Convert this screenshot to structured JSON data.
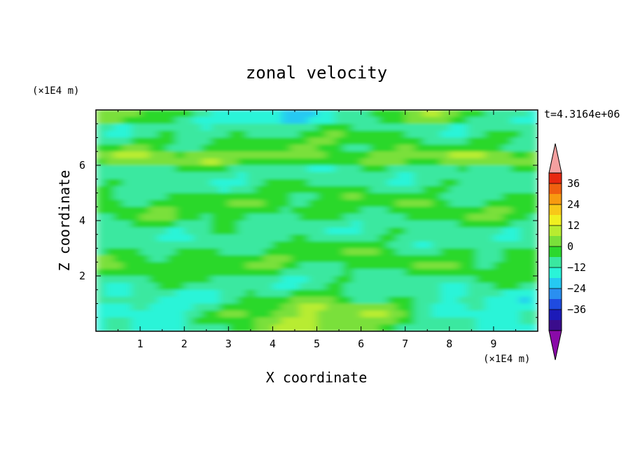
{
  "chart_data": {
    "type": "heatmap",
    "title": "zonal velocity",
    "xlabel": "X coordinate",
    "ylabel": "Z coordinate",
    "x_unit": "(×1E4 m)",
    "y_unit": "(×1E4 m)",
    "time_label": "t=4.3164e+06",
    "xlim": [
      0,
      10
    ],
    "ylim": [
      0,
      8
    ],
    "x_ticks": [
      "1",
      "2",
      "3",
      "4",
      "5",
      "6",
      "7",
      "8",
      "9"
    ],
    "y_ticks": [
      "2",
      "4",
      "6"
    ],
    "colorbar": {
      "levels": [
        "36",
        "24",
        "12",
        "0",
        "−12",
        "−24",
        "−36"
      ],
      "extend": "both",
      "colors": [
        "#8a0aa8",
        "#3a0c8c",
        "#1c1ab8",
        "#1f4be0",
        "#2a8ff0",
        "#25c9f2",
        "#2af4d8",
        "#3ae8a0",
        "#2cd82c",
        "#7ae03a",
        "#b8ec30",
        "#f0f020",
        "#f8c818",
        "#f89a10",
        "#f06010",
        "#e82810",
        "#f4a0a0"
      ]
    },
    "grid": false,
    "grid_nx": 50,
    "grid_ny": 32
  }
}
